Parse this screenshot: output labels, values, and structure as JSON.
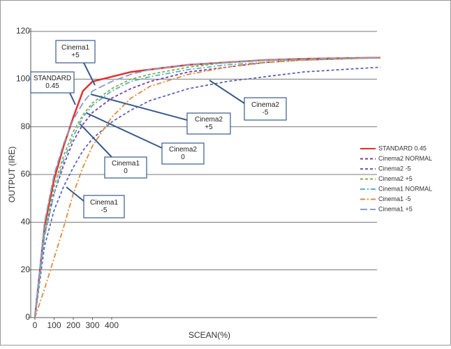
{
  "chart_data": {
    "type": "line",
    "xlabel": "SCEAN(%)",
    "ylabel": "OUTPUT (IRE)",
    "x": [
      0,
      50,
      100,
      150,
      200,
      250,
      300,
      400,
      500,
      600,
      800,
      1000,
      1200,
      1400,
      1800
    ],
    "xlim": [
      0,
      1800
    ],
    "xticks": [
      0,
      100,
      200,
      300,
      400
    ],
    "ylim": [
      0,
      120
    ],
    "yticks": [
      0,
      20,
      40,
      60,
      80,
      100,
      120
    ],
    "grid": true,
    "legend": "right",
    "series": [
      {
        "name": "STANDARD 0.45",
        "color": "#e0302f",
        "style": "solid",
        "values": [
          0,
          38,
          58,
          72,
          84,
          95,
          99,
          101,
          103,
          104,
          106,
          107,
          108,
          108.5,
          109
        ]
      },
      {
        "name": "Cinema2 NORMAL",
        "color": "#7a3fa0",
        "style": "dash",
        "values": [
          0,
          35,
          52,
          64,
          74,
          81,
          86,
          92,
          96,
          99,
          103,
          105,
          107,
          108,
          109
        ]
      },
      {
        "name": "Cinema2 -5",
        "color": "#5a64b8",
        "style": "dash",
        "values": [
          0,
          30,
          45,
          55,
          63,
          70,
          75,
          82,
          87,
          91,
          96,
          99,
          101,
          103,
          105
        ]
      },
      {
        "name": "Cinema2 +5",
        "color": "#7fb04a",
        "style": "dash",
        "values": [
          0,
          36,
          55,
          68,
          78,
          85,
          90,
          96,
          100,
          102,
          105,
          107,
          108,
          108,
          109
        ]
      },
      {
        "name": "Cinema1 NORMAL",
        "color": "#5ab0c8",
        "style": "dashdot",
        "values": [
          0,
          34,
          52,
          66,
          76,
          84,
          89,
          95,
          99,
          101,
          104,
          106,
          107,
          108,
          109
        ]
      },
      {
        "name": "Cinema1 -5",
        "color": "#e08a3c",
        "style": "dashdot",
        "values": [
          0,
          12,
          25,
          38,
          52,
          63,
          72,
          84,
          92,
          97,
          102,
          105,
          107,
          108,
          109
        ]
      },
      {
        "name": "Cinema1 +5",
        "color": "#8a9cc8",
        "style": "longdash",
        "values": [
          0,
          40,
          60,
          73,
          83,
          90,
          95,
          99,
          102,
          104,
          106,
          107,
          108,
          108.5,
          109
        ]
      }
    ],
    "annotations": [
      {
        "lines": [
          "Cinema1",
          "+5"
        ]
      },
      {
        "lines": [
          "STANDARD",
          "0.45"
        ]
      },
      {
        "lines": [
          "Cinema2",
          "+5"
        ]
      },
      {
        "lines": [
          "Cinema2",
          "-5"
        ]
      },
      {
        "lines": [
          "Cinema2",
          "0"
        ]
      },
      {
        "lines": [
          "Cinema1",
          "0"
        ]
      },
      {
        "lines": [
          "Cinema1",
          "-5"
        ]
      }
    ]
  }
}
